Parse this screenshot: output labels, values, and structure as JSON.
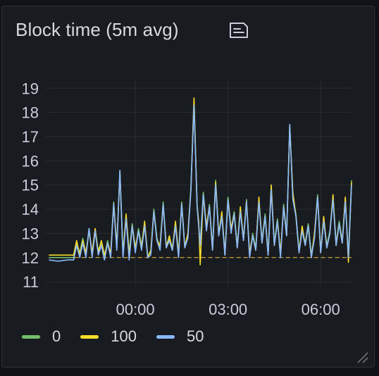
{
  "panel": {
    "title": "Block time (5m avg)",
    "description_icon": "description-icon"
  },
  "chart_data": {
    "type": "line",
    "title": "Block time (5m avg)",
    "y_ticks": [
      "19",
      "18",
      "17",
      "16",
      "15",
      "14",
      "13",
      "12",
      "11"
    ],
    "x_ticks": [
      {
        "label": "00:00",
        "t": 0
      },
      {
        "label": "03:00",
        "t": 3
      },
      {
        "label": "06:00",
        "t": 6
      }
    ],
    "ylim": [
      10.8,
      19.3
    ],
    "xlim": [
      -2.9,
      7.0
    ],
    "grid": true,
    "legend_position": "bottom",
    "threshold": {
      "value": 12.0,
      "color": "#c9a02a",
      "style": "dashed"
    },
    "series": [
      {
        "name": "0",
        "color": "#73bf69",
        "x": [
          -2.8,
          -2.5,
          -2.2,
          -2.0,
          -1.9,
          -1.8,
          -1.7,
          -1.6,
          -1.5,
          -1.4,
          -1.3,
          -1.2,
          -1.1,
          -1.0,
          -0.9,
          -0.8,
          -0.7,
          -0.6,
          -0.5,
          -0.4,
          -0.3,
          -0.2,
          -0.1,
          0.0,
          0.1,
          0.2,
          0.3,
          0.4,
          0.5,
          0.6,
          0.7,
          0.8,
          0.9,
          1.0,
          1.1,
          1.2,
          1.3,
          1.4,
          1.5,
          1.6,
          1.7,
          1.8,
          1.9,
          2.0,
          2.05,
          2.1,
          2.2,
          2.3,
          2.4,
          2.5,
          2.6,
          2.7,
          2.8,
          2.9,
          3.0,
          3.1,
          3.2,
          3.3,
          3.4,
          3.5,
          3.6,
          3.7,
          3.8,
          3.9,
          4.0,
          4.1,
          4.2,
          4.3,
          4.4,
          4.5,
          4.6,
          4.7,
          4.8,
          4.9,
          5.0,
          5.1,
          5.2,
          5.3,
          5.4,
          5.5,
          5.6,
          5.7,
          5.8,
          5.9,
          6.0,
          6.1,
          6.2,
          6.3,
          6.4,
          6.5,
          6.6,
          6.7,
          6.8,
          6.9,
          7.0
        ],
        "values": [
          12.0,
          12.0,
          12.0,
          12.0,
          12.6,
          12.2,
          12.8,
          12.1,
          13.2,
          12.1,
          13.1,
          12.3,
          12.6,
          12.0,
          12.7,
          12.1,
          14.3,
          12.4,
          15.6,
          12.2,
          13.7,
          12.2,
          13.4,
          12.3,
          13.2,
          12.5,
          13.4,
          12.1,
          12.2,
          14.0,
          12.8,
          12.4,
          14.3,
          12.5,
          12.8,
          12.4,
          13.4,
          12.2,
          14.3,
          12.5,
          12.9,
          14.9,
          18.5,
          14.2,
          13.4,
          12.6,
          14.7,
          13.2,
          14.2,
          12.4,
          15.2,
          13.0,
          13.8,
          12.2,
          14.5,
          13.1,
          13.9,
          12.5,
          14.0,
          12.8,
          14.4,
          12.1,
          13.0,
          12.4,
          14.4,
          12.7,
          13.8,
          12.2,
          14.9,
          12.6,
          13.6,
          12.1,
          14.2,
          13.0,
          17.5,
          14.5,
          13.8,
          12.3,
          13.2,
          12.6,
          13.4,
          12.1,
          12.9,
          14.6,
          12.3,
          13.6,
          12.5,
          13.1,
          14.5,
          12.6,
          13.5,
          12.7,
          14.4,
          12.1,
          15.2
        ]
      },
      {
        "name": "100",
        "color": "#fade2a",
        "x": [
          -2.8,
          -2.5,
          -2.2,
          -2.0,
          -1.9,
          -1.8,
          -1.7,
          -1.6,
          -1.5,
          -1.4,
          -1.3,
          -1.2,
          -1.1,
          -1.0,
          -0.9,
          -0.8,
          -0.7,
          -0.6,
          -0.5,
          -0.4,
          -0.3,
          -0.2,
          -0.1,
          0.0,
          0.1,
          0.2,
          0.3,
          0.4,
          0.5,
          0.6,
          0.7,
          0.8,
          0.9,
          1.0,
          1.1,
          1.2,
          1.3,
          1.4,
          1.5,
          1.6,
          1.7,
          1.8,
          1.9,
          2.0,
          2.05,
          2.1,
          2.2,
          2.3,
          2.4,
          2.5,
          2.6,
          2.7,
          2.8,
          2.9,
          3.0,
          3.1,
          3.2,
          3.3,
          3.4,
          3.5,
          3.6,
          3.7,
          3.8,
          3.9,
          4.0,
          4.1,
          4.2,
          4.3,
          4.4,
          4.5,
          4.6,
          4.7,
          4.8,
          4.9,
          5.0,
          5.1,
          5.2,
          5.3,
          5.4,
          5.5,
          5.6,
          5.7,
          5.8,
          5.9,
          6.0,
          6.1,
          6.2,
          6.3,
          6.4,
          6.5,
          6.6,
          6.7,
          6.8,
          6.9,
          7.0
        ],
        "values": [
          12.1,
          12.1,
          12.1,
          12.1,
          12.7,
          12.1,
          12.7,
          12.2,
          13.1,
          12.2,
          13.2,
          12.2,
          12.7,
          12.1,
          12.6,
          12.2,
          14.2,
          12.5,
          15.5,
          12.1,
          13.8,
          12.1,
          13.3,
          12.4,
          13.1,
          12.4,
          13.5,
          12.0,
          12.3,
          13.9,
          12.7,
          12.5,
          14.2,
          12.4,
          12.9,
          12.3,
          13.5,
          12.1,
          14.2,
          12.4,
          13.0,
          14.8,
          18.6,
          14.1,
          13.5,
          11.7,
          14.6,
          13.3,
          14.1,
          12.3,
          15.1,
          12.9,
          13.9,
          12.1,
          14.4,
          13.2,
          13.8,
          12.4,
          14.1,
          12.7,
          14.3,
          12.2,
          12.9,
          12.3,
          14.5,
          12.6,
          13.7,
          12.1,
          15.0,
          12.5,
          13.5,
          12.2,
          14.1,
          12.9,
          17.4,
          14.7,
          13.7,
          12.2,
          13.3,
          12.5,
          13.3,
          12.0,
          13.0,
          14.5,
          12.2,
          13.7,
          12.4,
          13.0,
          14.6,
          12.5,
          13.4,
          12.6,
          14.5,
          11.8,
          15.1
        ]
      },
      {
        "name": "50",
        "color": "#8ab8ff",
        "x": [
          -2.8,
          -2.5,
          -2.2,
          -2.0,
          -1.9,
          -1.8,
          -1.7,
          -1.6,
          -1.5,
          -1.4,
          -1.3,
          -1.2,
          -1.1,
          -1.0,
          -0.9,
          -0.8,
          -0.7,
          -0.6,
          -0.5,
          -0.4,
          -0.3,
          -0.2,
          -0.1,
          0.0,
          0.1,
          0.2,
          0.3,
          0.4,
          0.5,
          0.6,
          0.7,
          0.8,
          0.9,
          1.0,
          1.1,
          1.2,
          1.3,
          1.4,
          1.5,
          1.6,
          1.7,
          1.8,
          1.9,
          2.0,
          2.05,
          2.1,
          2.2,
          2.3,
          2.4,
          2.5,
          2.6,
          2.7,
          2.8,
          2.9,
          3.0,
          3.1,
          3.2,
          3.3,
          3.4,
          3.5,
          3.6,
          3.7,
          3.8,
          3.9,
          4.0,
          4.1,
          4.2,
          4.3,
          4.4,
          4.5,
          4.6,
          4.7,
          4.8,
          4.9,
          5.0,
          5.1,
          5.2,
          5.3,
          5.4,
          5.5,
          5.6,
          5.7,
          5.8,
          5.9,
          6.0,
          6.1,
          6.2,
          6.3,
          6.4,
          6.5,
          6.6,
          6.7,
          6.8,
          6.9,
          7.0
        ],
        "values": [
          11.9,
          11.85,
          11.9,
          11.9,
          12.5,
          12.0,
          12.6,
          12.0,
          13.2,
          12.0,
          13.1,
          12.1,
          12.5,
          11.9,
          12.6,
          12.0,
          14.2,
          12.3,
          15.6,
          12.0,
          13.6,
          11.9,
          13.3,
          12.2,
          13.1,
          12.3,
          13.3,
          12.0,
          12.1,
          13.9,
          12.7,
          12.3,
          14.2,
          12.4,
          12.7,
          12.3,
          13.3,
          12.0,
          14.2,
          12.4,
          12.8,
          14.8,
          18.3,
          14.1,
          13.3,
          12.5,
          14.6,
          13.1,
          14.1,
          12.3,
          15.0,
          12.9,
          13.7,
          12.1,
          14.4,
          13.0,
          13.8,
          12.4,
          13.9,
          12.7,
          14.3,
          12.0,
          12.9,
          12.3,
          14.3,
          12.6,
          13.7,
          12.1,
          14.8,
          12.5,
          13.5,
          12.0,
          14.1,
          12.9,
          17.5,
          14.4,
          13.7,
          12.2,
          13.1,
          12.5,
          13.3,
          12.0,
          12.8,
          14.5,
          12.2,
          13.5,
          12.4,
          13.0,
          14.4,
          12.5,
          13.4,
          12.6,
          14.3,
          12.0,
          15.0
        ]
      }
    ]
  }
}
